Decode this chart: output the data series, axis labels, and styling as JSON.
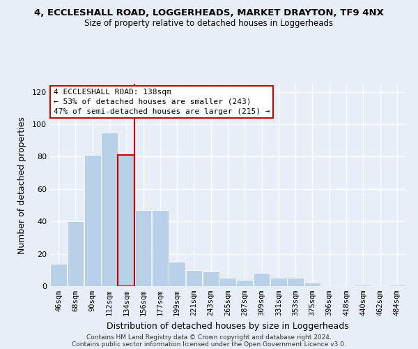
{
  "title1": "4, ECCLESHALL ROAD, LOGGERHEADS, MARKET DRAYTON, TF9 4NX",
  "title2": "Size of property relative to detached houses in Loggerheads",
  "xlabel": "Distribution of detached houses by size in Loggerheads",
  "ylabel": "Number of detached properties",
  "bar_labels": [
    "46sqm",
    "68sqm",
    "90sqm",
    "112sqm",
    "134sqm",
    "156sqm",
    "177sqm",
    "199sqm",
    "221sqm",
    "243sqm",
    "265sqm",
    "287sqm",
    "309sqm",
    "331sqm",
    "353sqm",
    "375sqm",
    "396sqm",
    "418sqm",
    "440sqm",
    "462sqm",
    "484sqm"
  ],
  "bar_values": [
    14,
    40,
    81,
    95,
    81,
    47,
    47,
    15,
    10,
    9,
    5,
    4,
    8,
    5,
    5,
    2,
    0,
    0,
    1,
    0,
    1
  ],
  "bar_color": "#b8d0e8",
  "highlight_index": 4,
  "highlight_color": "#cc0000",
  "ylim": [
    0,
    125
  ],
  "yticks": [
    0,
    20,
    40,
    60,
    80,
    100,
    120
  ],
  "annotation_title": "4 ECCLESHALL ROAD: 138sqm",
  "annotation_line1": "← 53% of detached houses are smaller (243)",
  "annotation_line2": "47% of semi-detached houses are larger (215) →",
  "footer1": "Contains HM Land Registry data © Crown copyright and database right 2024.",
  "footer2": "Contains public sector information licensed under the Open Government Licence v3.0.",
  "bg_color": "#e8eef8",
  "plot_bg_color": "#e8eef8",
  "grid_color": "#ffffff",
  "annotation_box_edge": "#cc0000",
  "title1_fontsize": 9.5,
  "title2_fontsize": 8.5
}
